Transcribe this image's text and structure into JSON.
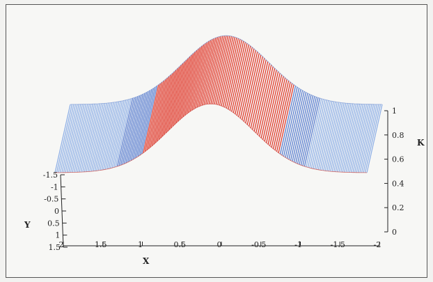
{
  "chart_data": {
    "type": "surface-3d",
    "title": "",
    "x_axis": {
      "label": "X",
      "range": [
        2,
        -2
      ],
      "ticks": [
        "2",
        "1.5",
        "1",
        "0.5",
        "0",
        "-0.5",
        "-1",
        "-1.5",
        "-2"
      ]
    },
    "y_axis": {
      "label": "Y",
      "range": [
        -1.5,
        1.5
      ],
      "ticks": [
        "-1.5",
        "-1",
        "-0.5",
        "0",
        "0.5",
        "1",
        "1.5"
      ]
    },
    "z_axis": {
      "label": "K",
      "range": [
        0,
        1
      ],
      "ticks": [
        "0",
        "0.2",
        "0.4",
        "0.6",
        "0.8",
        "1"
      ]
    },
    "grid": false,
    "surface": {
      "function": "gaussian-ridge along x, constant in y",
      "peak_k": 1.0,
      "peak_at_x": 0,
      "baseline_k": 0.45,
      "colors": {
        "high": "#e03a2c",
        "mid": "#5b7fd0",
        "low": "#8fb0e6"
      }
    }
  }
}
